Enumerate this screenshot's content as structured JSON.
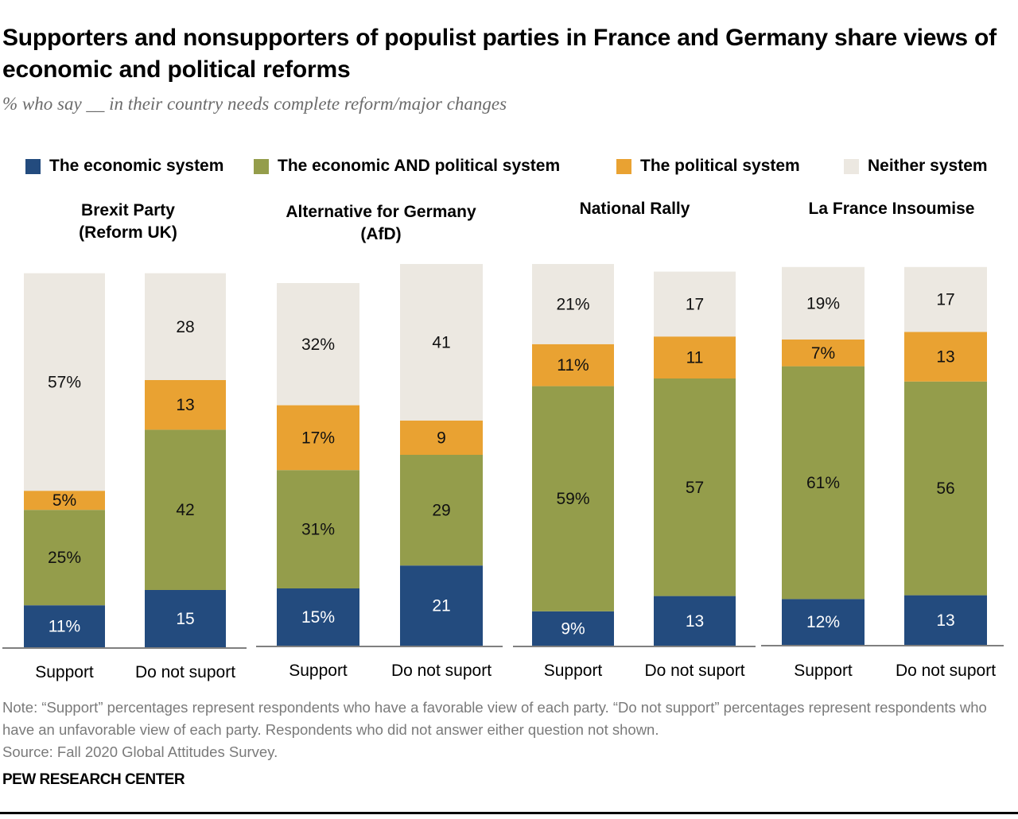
{
  "title": "Supporters and nonsupporters of populist parties in France and Germany share views of economic and political reforms",
  "subtitle": "% who say __ in their country needs complete reform/major changes",
  "note": "Note: “Support” percentages represent respondents who have a favorable view of each party. “Do not support” percentages represent respondents who have an unfavorable view of each party. Respondents who did not answer either question not shown.",
  "source": "Source: Fall 2020 Global Attitudes Survey.",
  "brand": "PEW RESEARCH CENTER",
  "chart_data": {
    "type": "bar",
    "stacked": true,
    "legend_position": "top",
    "grid": false,
    "series": [
      {
        "name": "The economic system",
        "color": "#234b7e"
      },
      {
        "name": "The economic AND political system",
        "color": "#949d4b"
      },
      {
        "name": "The political system",
        "color": "#e9a232"
      },
      {
        "name": "Neither system",
        "color": "#ece8e1"
      }
    ],
    "panels": [
      {
        "title": [
          "Brexit Party",
          "(Reform UK)"
        ],
        "categories": [
          "Support",
          "Do not suport"
        ],
        "values": [
          [
            11,
            25,
            5,
            57
          ],
          [
            15,
            42,
            13,
            28
          ]
        ],
        "labels": [
          [
            "11%",
            "25%",
            "5%",
            "57%"
          ],
          [
            "15",
            "42",
            "13",
            "28"
          ]
        ]
      },
      {
        "title": [
          "Alternative for Germany",
          "(AfD)"
        ],
        "categories": [
          "Support",
          "Do not suport"
        ],
        "values": [
          [
            15,
            31,
            17,
            32
          ],
          [
            21,
            29,
            9,
            41
          ]
        ],
        "labels": [
          [
            "15%",
            "31%",
            "17%",
            "32%"
          ],
          [
            "21",
            "29",
            "9",
            "41"
          ]
        ]
      },
      {
        "title": [
          "National Rally"
        ],
        "categories": [
          "Support",
          "Do not suport"
        ],
        "values": [
          [
            9,
            59,
            11,
            21
          ],
          [
            13,
            57,
            11,
            17
          ]
        ],
        "labels": [
          [
            "9%",
            "59%",
            "11%",
            "21%"
          ],
          [
            "13",
            "57",
            "11",
            "17"
          ]
        ]
      },
      {
        "title": [
          "La France Insoumise"
        ],
        "categories": [
          "Support",
          "Do not suport"
        ],
        "values": [
          [
            12,
            61,
            7,
            19
          ],
          [
            13,
            56,
            13,
            17
          ]
        ],
        "labels": [
          [
            "12%",
            "61%",
            "7%",
            "19%"
          ],
          [
            "13",
            "56",
            "13",
            "17"
          ]
        ]
      }
    ]
  }
}
